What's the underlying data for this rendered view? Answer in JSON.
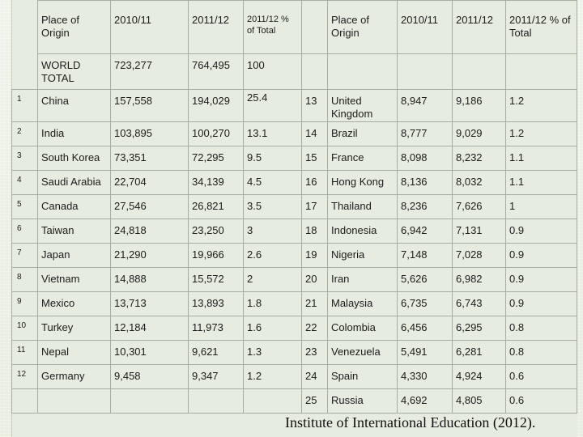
{
  "headers": {
    "left": {
      "origin": "Place of Origin",
      "y1011": "2010/11",
      "y1112": "2011/12",
      "pct": "2011/12 % of Total"
    },
    "right": {
      "origin": "Place of Origin",
      "y1011": "2010/11",
      "y1112": "2011/12",
      "pct": "2011/12 % of Total"
    }
  },
  "world_total": {
    "label": "WORLD TOTAL",
    "y1011": "723,277",
    "y1112": "764,495",
    "pct": "100"
  },
  "rows": [
    {
      "l_rank": "1",
      "l_country": "China",
      "l_y1011": "157,558",
      "l_y1112": "194,029",
      "l_pct": "25.4",
      "r_rank": "13",
      "r_country": "United Kingdom",
      "r_y1011": "8,947",
      "r_y1112": "9,186",
      "r_pct": "1.2"
    },
    {
      "l_rank": "2",
      "l_country": "India",
      "l_y1011": "103,895",
      "l_y1112": "100,270",
      "l_pct": "13.1",
      "r_rank": "14",
      "r_country": "Brazil",
      "r_y1011": "8,777",
      "r_y1112": "9,029",
      "r_pct": "1.2"
    },
    {
      "l_rank": "3",
      "l_country": "South Korea",
      "l_y1011": "73,351",
      "l_y1112": "72,295",
      "l_pct": "9.5",
      "r_rank": "15",
      "r_country": "France",
      "r_y1011": "8,098",
      "r_y1112": "8,232",
      "r_pct": "1.1"
    },
    {
      "l_rank": "4",
      "l_country": "Saudi Arabia",
      "l_y1011": "22,704",
      "l_y1112": "34,139",
      "l_pct": "4.5",
      "r_rank": "16",
      "r_country": "Hong Kong",
      "r_y1011": "8,136",
      "r_y1112": "8,032",
      "r_pct": "1.1"
    },
    {
      "l_rank": "5",
      "l_country": "Canada",
      "l_y1011": "27,546",
      "l_y1112": "26,821",
      "l_pct": "3.5",
      "r_rank": "17",
      "r_country": "Thailand",
      "r_y1011": "8,236",
      "r_y1112": "7,626",
      "r_pct": "1"
    },
    {
      "l_rank": "6",
      "l_country": "Taiwan",
      "l_y1011": "24,818",
      "l_y1112": "23,250",
      "l_pct": "3",
      "r_rank": "18",
      "r_country": "Indonesia",
      "r_y1011": "6,942",
      "r_y1112": "7,131",
      "r_pct": "0.9"
    },
    {
      "l_rank": "7",
      "l_country": "Japan",
      "l_y1011": "21,290",
      "l_y1112": "19,966",
      "l_pct": "2.6",
      "r_rank": "19",
      "r_country": "Nigeria",
      "r_y1011": "7,148",
      "r_y1112": "7,028",
      "r_pct": "0.9"
    },
    {
      "l_rank": "8",
      "l_country": "Vietnam",
      "l_y1011": "14,888",
      "l_y1112": "15,572",
      "l_pct": "2",
      "r_rank": "20",
      "r_country": "Iran",
      "r_y1011": "5,626",
      "r_y1112": "6,982",
      "r_pct": "0.9"
    },
    {
      "l_rank": "9",
      "l_country": "Mexico",
      "l_y1011": "13,713",
      "l_y1112": "13,893",
      "l_pct": "1.8",
      "r_rank": "21",
      "r_country": "Malaysia",
      "r_y1011": "6,735",
      "r_y1112": "6,743",
      "r_pct": "0.9"
    },
    {
      "l_rank": "10",
      "l_country": "Turkey",
      "l_y1011": "12,184",
      "l_y1112": "11,973",
      "l_pct": "1.6",
      "r_rank": "22",
      "r_country": "Colombia",
      "r_y1011": "6,456",
      "r_y1112": "6,295",
      "r_pct": "0.8"
    },
    {
      "l_rank": "11",
      "l_country": "Nepal",
      "l_y1011": "10,301",
      "l_y1112": "9,621",
      "l_pct": "1.3",
      "r_rank": "23",
      "r_country": "Venezuela",
      "r_y1011": "5,491",
      "r_y1112": "6,281",
      "r_pct": "0.8"
    },
    {
      "l_rank": "12",
      "l_country": "Germany",
      "l_y1011": "9,458",
      "l_y1112": "9,347",
      "l_pct": "1.2",
      "r_rank": "24",
      "r_country": "Spain",
      "r_y1011": "4,330",
      "r_y1112": "4,924",
      "r_pct": "0.6"
    },
    {
      "l_rank": "",
      "l_country": "",
      "l_y1011": "",
      "l_y1112": "",
      "l_pct": "",
      "r_rank": "25",
      "r_country": "Russia",
      "r_y1011": "4,692",
      "r_y1112": "4,805",
      "r_pct": "0.6"
    }
  ],
  "footer": "Institute of International Education (2012)."
}
